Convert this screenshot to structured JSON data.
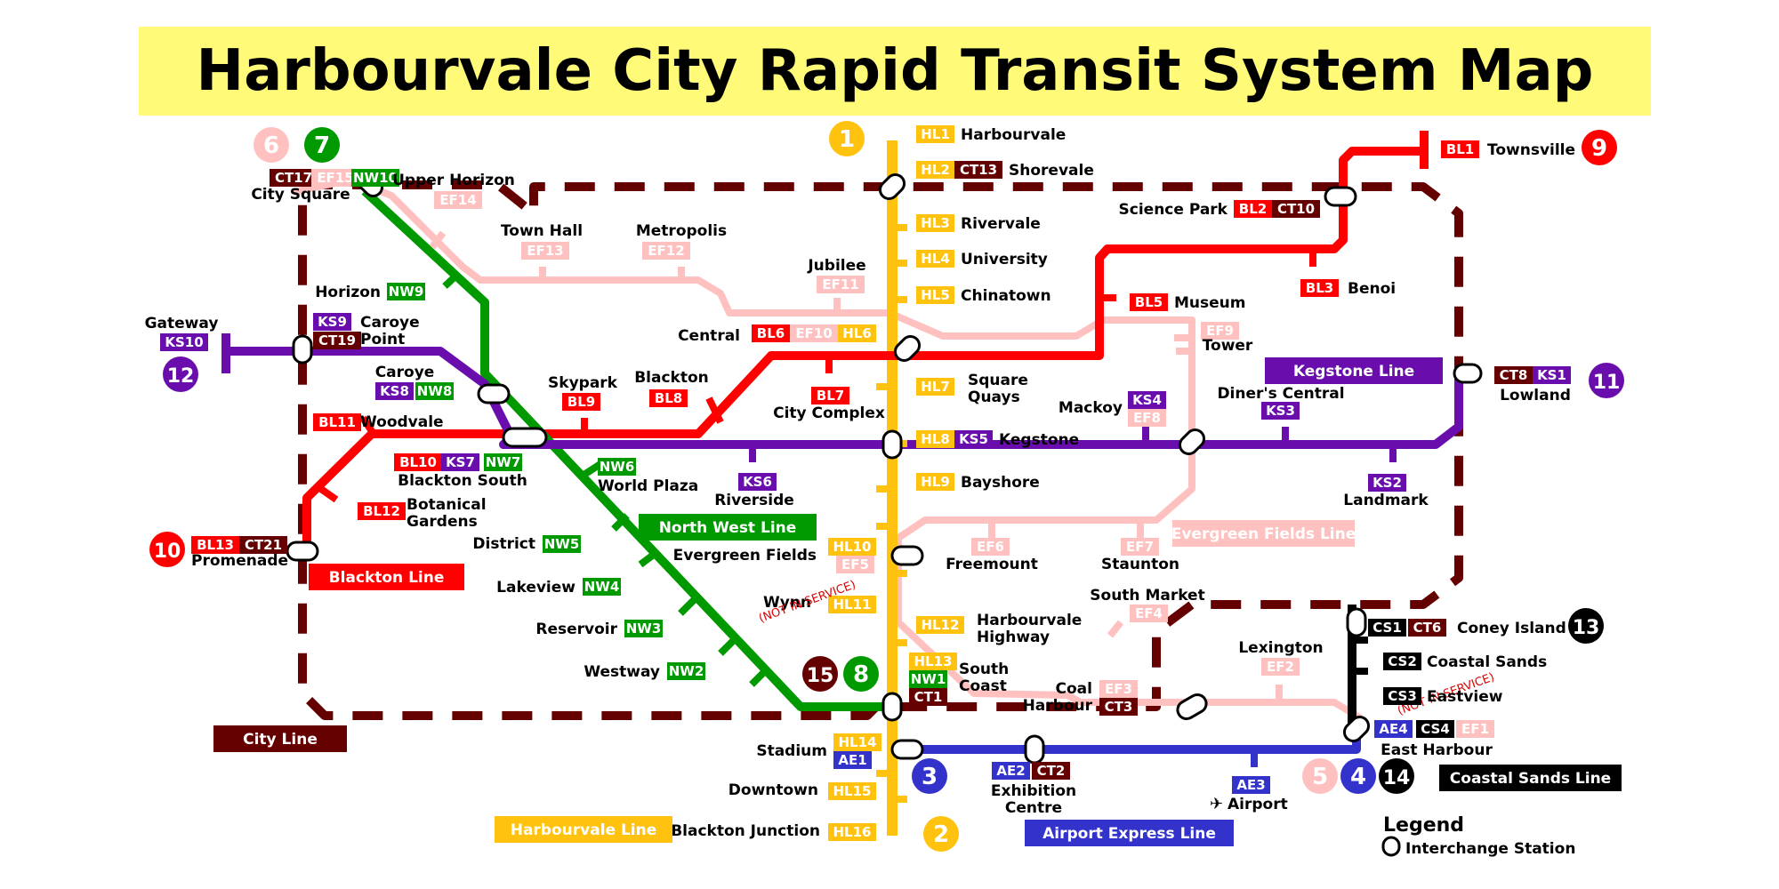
{
  "title": "Harbourvale City Rapid Transit System Map",
  "colors": {
    "harbourvale": "#FFC20E",
    "blackton": "#FF0000",
    "northwest": "#009900",
    "kegstone": "#6A0DAD",
    "city": "#650000",
    "evergreen": "#FFC0C0",
    "airport": "#3333CC",
    "coastal": "#000000"
  },
  "line_labels": [
    {
      "id": "harbourvale",
      "text": "Harbourvale Line"
    },
    {
      "id": "blackton",
      "text": "Blackton Line"
    },
    {
      "id": "northwest",
      "text": "North West Line"
    },
    {
      "id": "kegstone",
      "text": "Kegstone Line"
    },
    {
      "id": "city",
      "text": "City Line"
    },
    {
      "id": "evergreen",
      "text": "Evergreen Fields Line"
    },
    {
      "id": "airport",
      "text": "Airport Express Line"
    },
    {
      "id": "coastal",
      "text": "Coastal Sands Line"
    }
  ],
  "line_numbers": [
    {
      "n": "1",
      "line": "harbourvale"
    },
    {
      "n": "2",
      "line": "harbourvale"
    },
    {
      "n": "3",
      "line": "airport"
    },
    {
      "n": "4",
      "line": "airport"
    },
    {
      "n": "5",
      "line": "evergreen"
    },
    {
      "n": "6",
      "line": "evergreen"
    },
    {
      "n": "7",
      "line": "northwest"
    },
    {
      "n": "8",
      "line": "northwest"
    },
    {
      "n": "9",
      "line": "blackton"
    },
    {
      "n": "10",
      "line": "blackton"
    },
    {
      "n": "11",
      "line": "kegstone"
    },
    {
      "n": "12",
      "line": "kegstone"
    },
    {
      "n": "13",
      "line": "coastal"
    },
    {
      "n": "14",
      "line": "coastal"
    },
    {
      "n": "15",
      "line": "city"
    }
  ],
  "codes": [
    {
      "id": "HL1",
      "line": "harbourvale"
    },
    {
      "id": "HL2",
      "line": "harbourvale"
    },
    {
      "id": "HL3",
      "line": "harbourvale"
    },
    {
      "id": "HL4",
      "line": "harbourvale"
    },
    {
      "id": "HL5",
      "line": "harbourvale"
    },
    {
      "id": "HL6",
      "line": "harbourvale"
    },
    {
      "id": "HL7",
      "line": "harbourvale"
    },
    {
      "id": "HL8",
      "line": "harbourvale"
    },
    {
      "id": "HL9",
      "line": "harbourvale"
    },
    {
      "id": "HL10",
      "line": "harbourvale"
    },
    {
      "id": "HL11",
      "line": "harbourvale"
    },
    {
      "id": "HL12",
      "line": "harbourvale"
    },
    {
      "id": "HL13",
      "line": "harbourvale"
    },
    {
      "id": "HL14",
      "line": "harbourvale"
    },
    {
      "id": "HL15",
      "line": "harbourvale"
    },
    {
      "id": "HL16",
      "line": "harbourvale"
    },
    {
      "id": "BL1",
      "line": "blackton"
    },
    {
      "id": "BL2",
      "line": "blackton"
    },
    {
      "id": "BL3",
      "line": "blackton"
    },
    {
      "id": "BL5",
      "line": "blackton"
    },
    {
      "id": "BL6",
      "line": "blackton"
    },
    {
      "id": "BL7",
      "line": "blackton"
    },
    {
      "id": "BL8",
      "line": "blackton"
    },
    {
      "id": "BL9",
      "line": "blackton"
    },
    {
      "id": "BL10",
      "line": "blackton"
    },
    {
      "id": "BL11",
      "line": "blackton"
    },
    {
      "id": "BL12",
      "line": "blackton"
    },
    {
      "id": "BL13",
      "line": "blackton"
    },
    {
      "id": "NW1",
      "line": "northwest"
    },
    {
      "id": "NW2",
      "line": "northwest"
    },
    {
      "id": "NW3",
      "line": "northwest"
    },
    {
      "id": "NW4",
      "line": "northwest"
    },
    {
      "id": "NW5",
      "line": "northwest"
    },
    {
      "id": "NW6",
      "line": "northwest"
    },
    {
      "id": "NW7",
      "line": "northwest"
    },
    {
      "id": "NW8",
      "line": "northwest"
    },
    {
      "id": "NW9",
      "line": "northwest"
    },
    {
      "id": "NW10",
      "line": "northwest"
    },
    {
      "id": "KS1",
      "line": "kegstone"
    },
    {
      "id": "KS2",
      "line": "kegstone"
    },
    {
      "id": "KS3",
      "line": "kegstone"
    },
    {
      "id": "KS4",
      "line": "kegstone"
    },
    {
      "id": "KS5",
      "line": "kegstone"
    },
    {
      "id": "KS6",
      "line": "kegstone"
    },
    {
      "id": "KS7",
      "line": "kegstone"
    },
    {
      "id": "KS8",
      "line": "kegstone"
    },
    {
      "id": "KS9",
      "line": "kegstone"
    },
    {
      "id": "KS10",
      "line": "kegstone"
    },
    {
      "id": "CT1",
      "line": "city"
    },
    {
      "id": "CT2",
      "line": "city"
    },
    {
      "id": "CT3",
      "line": "city"
    },
    {
      "id": "CT6",
      "line": "city"
    },
    {
      "id": "CT8",
      "line": "city"
    },
    {
      "id": "CT10",
      "line": "city"
    },
    {
      "id": "CT13",
      "line": "city"
    },
    {
      "id": "CT17",
      "line": "city"
    },
    {
      "id": "CT19",
      "line": "city"
    },
    {
      "id": "CT21",
      "line": "city"
    },
    {
      "id": "EF1",
      "line": "evergreen"
    },
    {
      "id": "EF2",
      "line": "evergreen"
    },
    {
      "id": "EF3",
      "line": "evergreen"
    },
    {
      "id": "EF4",
      "line": "evergreen"
    },
    {
      "id": "EF5",
      "line": "evergreen"
    },
    {
      "id": "EF6",
      "line": "evergreen"
    },
    {
      "id": "EF7",
      "line": "evergreen"
    },
    {
      "id": "EF8",
      "line": "evergreen"
    },
    {
      "id": "EF9",
      "line": "evergreen"
    },
    {
      "id": "EF10",
      "line": "evergreen"
    },
    {
      "id": "EF11",
      "line": "evergreen"
    },
    {
      "id": "EF12",
      "line": "evergreen"
    },
    {
      "id": "EF13",
      "line": "evergreen"
    },
    {
      "id": "EF14",
      "line": "evergreen"
    },
    {
      "id": "EF15",
      "line": "evergreen"
    },
    {
      "id": "AE1",
      "line": "airport"
    },
    {
      "id": "AE2",
      "line": "airport"
    },
    {
      "id": "AE3",
      "line": "airport"
    },
    {
      "id": "AE4",
      "line": "airport"
    },
    {
      "id": "CS1",
      "line": "coastal"
    },
    {
      "id": "CS2",
      "line": "coastal"
    },
    {
      "id": "CS3",
      "line": "coastal"
    },
    {
      "id": "CS4",
      "line": "coastal"
    }
  ],
  "stations": [
    {
      "name": "Harbourvale"
    },
    {
      "name": "Shorevale"
    },
    {
      "name": "Rivervale"
    },
    {
      "name": "University"
    },
    {
      "name": "Chinatown"
    },
    {
      "name": "Central"
    },
    {
      "name": "Square Quays"
    },
    {
      "name": "Kegstone"
    },
    {
      "name": "Bayshore"
    },
    {
      "name": "Evergreen Fields"
    },
    {
      "name": "Wynn"
    },
    {
      "name": "Harbourvale Highway"
    },
    {
      "name": "South Coast"
    },
    {
      "name": "Stadium"
    },
    {
      "name": "Downtown"
    },
    {
      "name": "Blackton Junction"
    },
    {
      "name": "Townsville"
    },
    {
      "name": "Science Park"
    },
    {
      "name": "Benoi"
    },
    {
      "name": "Museum"
    },
    {
      "name": "City Complex"
    },
    {
      "name": "Blackton"
    },
    {
      "name": "Skypark"
    },
    {
      "name": "Blackton South"
    },
    {
      "name": "Woodvale"
    },
    {
      "name": "Botanical Gardens"
    },
    {
      "name": "Promenade"
    },
    {
      "name": "City Square"
    },
    {
      "name": "Horizon"
    },
    {
      "name": "Caroye"
    },
    {
      "name": "World Plaza"
    },
    {
      "name": "District"
    },
    {
      "name": "Lakeview"
    },
    {
      "name": "Reservoir"
    },
    {
      "name": "Westway"
    },
    {
      "name": "Gateway"
    },
    {
      "name": "Caroye Point"
    },
    {
      "name": "Riverside"
    },
    {
      "name": "Mackoy"
    },
    {
      "name": "Diner's Central"
    },
    {
      "name": "Landmark"
    },
    {
      "name": "Lowland"
    },
    {
      "name": "Upper Horizon"
    },
    {
      "name": "Town Hall"
    },
    {
      "name": "Metropolis"
    },
    {
      "name": "Jubilee"
    },
    {
      "name": "Tower"
    },
    {
      "name": "Freemount"
    },
    {
      "name": "Staunton"
    },
    {
      "name": "South Market"
    },
    {
      "name": "Coal Harbour"
    },
    {
      "name": "Lexington"
    },
    {
      "name": "East Harbour"
    },
    {
      "name": "Exhibition Centre"
    },
    {
      "name": "Airport"
    },
    {
      "name": "Coney Island"
    },
    {
      "name": "Coastal Sands"
    },
    {
      "name": "Eastview"
    }
  ],
  "not_in_service": "(NOT IN SERVICE)",
  "legend": {
    "title": "Legend",
    "interchange": "Interchange Station"
  }
}
